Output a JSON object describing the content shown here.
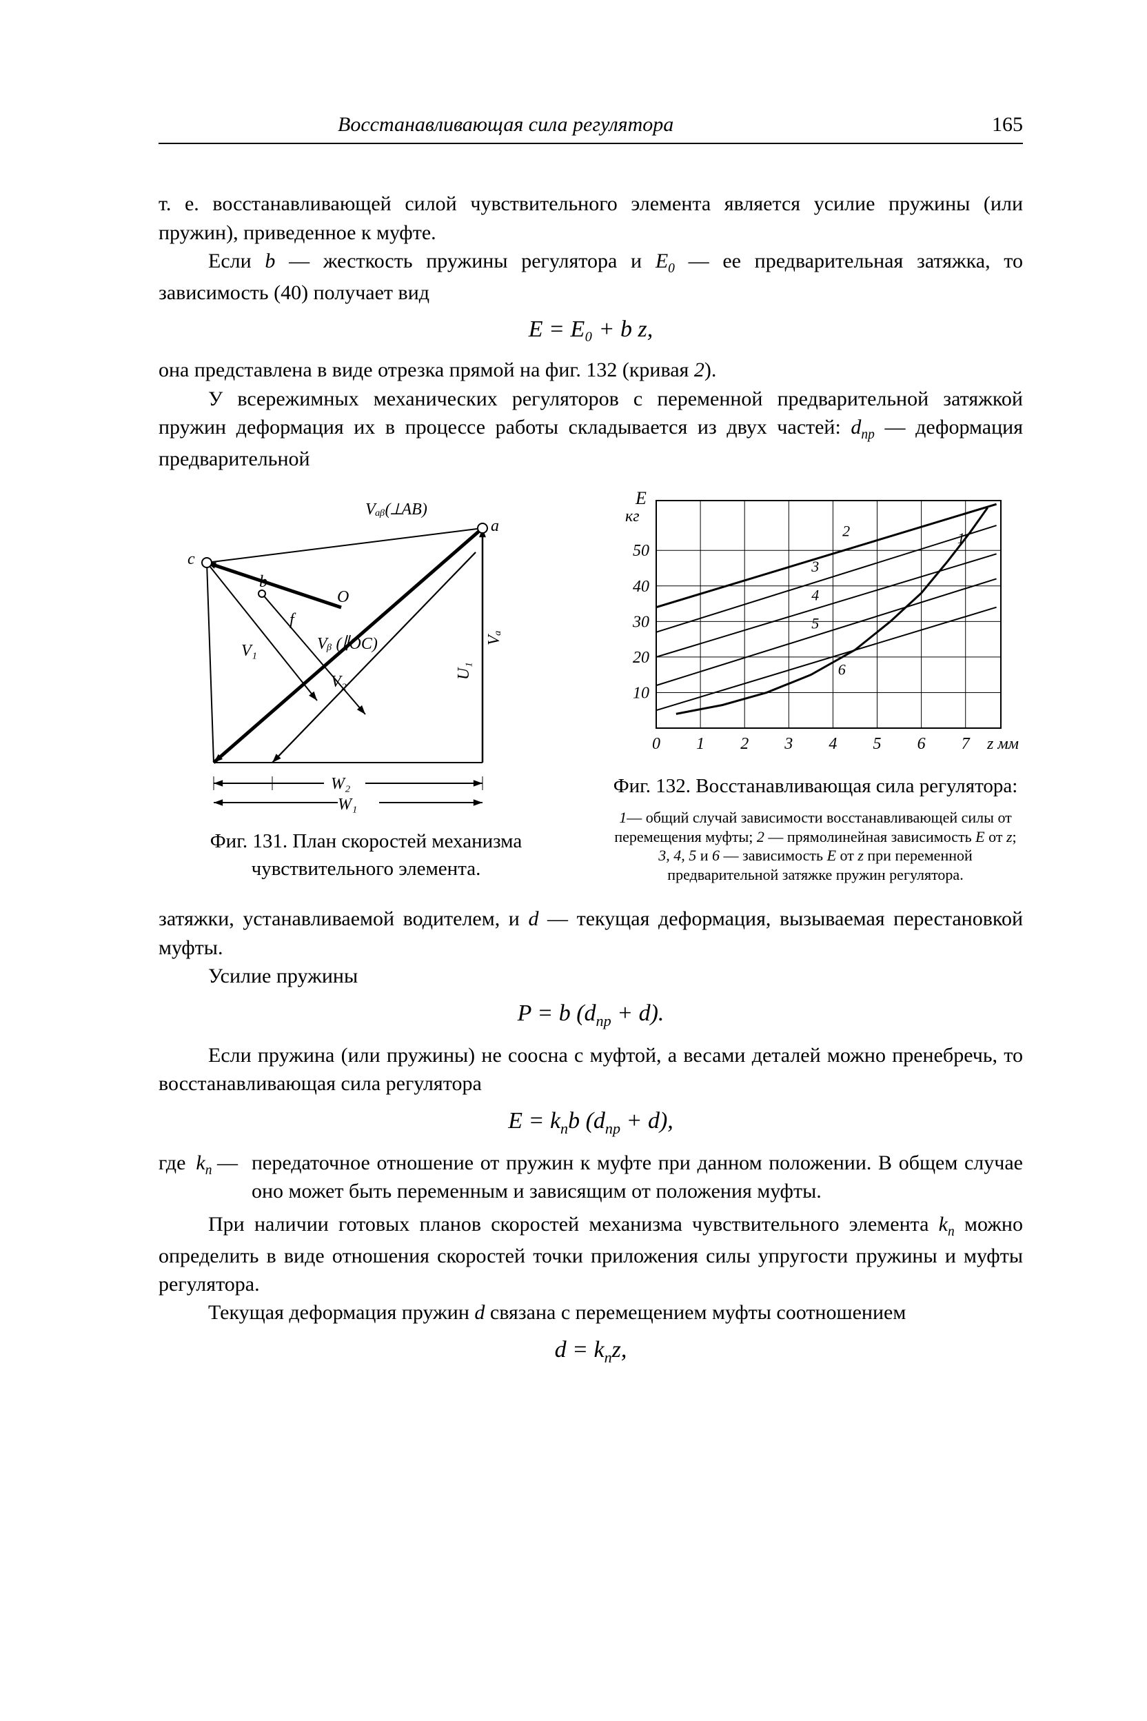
{
  "header": {
    "running_title": "Восстанавливающая сила регулятора",
    "page_number": "165"
  },
  "text": {
    "p1": "т. е. восстанавливающей силой чувствительного элемента является усилие пружины (или пружин), приведенное к муфте.",
    "p2_a": "Если ",
    "p2_b": "b",
    "p2_c": " — жесткость пружины регулятора и ",
    "p2_d": "E",
    "p2_d_sub": "0",
    "p2_e": " — ее предвари­тельная затяжка, то зависимость (40) получает вид",
    "eq1": "E = E₀ + b z,",
    "p3_a": "она представлена в виде отрезка прямой на фиг. 132 (кривая ",
    "p3_b": "2",
    "p3_c": ").",
    "p4_a": "У всережимных механических регуляторов с переменной пред­варительной затяжкой пружин деформация их в процессе работы складывается из двух частей: ",
    "p4_b": "d",
    "p4_b_sub": "пр",
    "p4_c": " — деформация предварительной",
    "p5_a": "затяжки, устанавливаемой водителем, и ",
    "p5_b": "d",
    "p5_c": " — текущая деформация, вызываемая перестановкой муфты.",
    "p6": "Усилие пружины",
    "eq2": "P = b (dₚᵣ + d).",
    "p7": "Если пружина (или пружины) не соосна с муфтой, а весами дета­лей можно пренебречь, то восстанавливающая сила регулятора",
    "eq3": "E = kₙ b (dₚᵣ + d),",
    "where_label": "где  kₙ —",
    "where_body": "передаточное отношение от пружин к муфте при данном положении. В общем случае оно может быть переменным и зависящим от положения муфты.",
    "p8_a": "При наличии готовых планов скоростей механизма чувстви­тельного элемента ",
    "p8_b": "k",
    "p8_b_sub": "п",
    "p8_c": " можно определить в виде отношения скоростей точки приложения силы упругости пружины и муфты регулятора.",
    "p9_a": "Текущая деформация пружин ",
    "p9_b": "d",
    "p9_c": " связана с перемещением муфты соотношением",
    "eq4": "d = kₙ z,"
  },
  "fig131": {
    "caption": "Фиг. 131. План скоростей меха­низма чувствительного элемента.",
    "labels": {
      "VabLAB": "Vₐᵦ(⟂AB)",
      "a": "а",
      "c": "с",
      "b_pt": "b",
      "O": "О",
      "V1": "V₁",
      "Vb": "Vᵦ (∥OC)",
      "V2": "V₂",
      "U1": "U₁",
      "Va": "Vₐ",
      "W1": "W₁",
      "W2": "W₂",
      "f": "f"
    },
    "colors": {
      "stroke": "#000000",
      "thin": "#000000"
    }
  },
  "fig132": {
    "caption_main": "Фиг. 132.  Восстанавливающая  сила регулятора:",
    "caption_small": "1 — общий случай зависимости восстанав­ливающей силы от перемещения муфты; 2 — прямолинейная зависимость E от z; 3, 4, 5 и 6 — зависимость E от z при пере­менной предварительной затяжке пружин регулятора.",
    "x_label": "z мм",
    "y_label_top": "E",
    "y_label_unit": "кг",
    "xticks": [
      0,
      1,
      2,
      3,
      4,
      5,
      6,
      7
    ],
    "xtick_labels": [
      "0",
      "1",
      "2",
      "3",
      "4",
      "5",
      "6",
      "7"
    ],
    "yticks": [
      10,
      20,
      30,
      40,
      50
    ],
    "xlim": [
      0,
      7.8
    ],
    "ylim": [
      0,
      64
    ],
    "grid": true,
    "grid_color": "#000000",
    "background_color": "#ffffff",
    "axis_linewidth": 2,
    "series": {
      "curve1": {
        "label": "1",
        "linewidth": 3,
        "pts": [
          [
            0.45,
            4
          ],
          [
            1.5,
            6.5
          ],
          [
            2.5,
            10
          ],
          [
            3.5,
            15
          ],
          [
            4.5,
            22
          ],
          [
            5.3,
            30
          ],
          [
            6.0,
            38
          ],
          [
            6.6,
            47
          ],
          [
            7.1,
            55
          ],
          [
            7.5,
            62
          ]
        ]
      },
      "line2": {
        "label": "2",
        "linewidth": 3,
        "pts": [
          [
            0,
            34
          ],
          [
            7.7,
            63
          ]
        ]
      },
      "line3": {
        "label": "3",
        "linewidth": 2,
        "pts": [
          [
            0,
            27
          ],
          [
            7.7,
            57
          ]
        ]
      },
      "line4": {
        "label": "4",
        "linewidth": 2,
        "pts": [
          [
            0,
            20
          ],
          [
            7.7,
            49
          ]
        ]
      },
      "line5": {
        "label": "5",
        "linewidth": 2,
        "pts": [
          [
            0,
            12
          ],
          [
            7.7,
            42
          ]
        ]
      },
      "line6": {
        "label": "6",
        "linewidth": 2,
        "pts": [
          [
            0,
            5
          ],
          [
            7.7,
            34
          ]
        ]
      }
    },
    "annot": {
      "1": [
        6.9,
        52
      ],
      "2": [
        4.3,
        54
      ],
      "3": [
        3.6,
        44
      ],
      "4": [
        3.6,
        36
      ],
      "5": [
        3.6,
        28
      ],
      "6": [
        4.2,
        15
      ]
    }
  }
}
